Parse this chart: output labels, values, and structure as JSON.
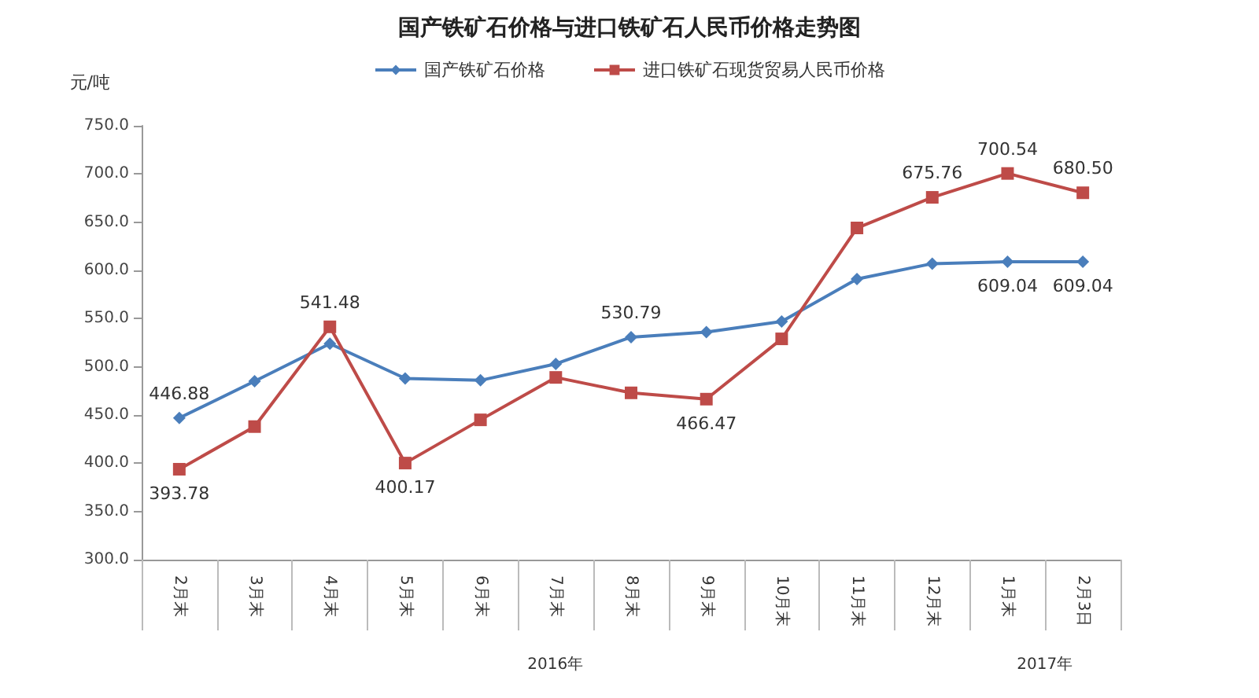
{
  "chart_data": {
    "type": "line",
    "title": "国产铁矿石价格与进口铁矿石人民币价格走势图",
    "ylabel": "元/吨",
    "categories": [
      "2月末",
      "3月末",
      "4月末",
      "5月末",
      "6月末",
      "7月末",
      "8月末",
      "9月末",
      "10月末",
      "11月末",
      "12月末",
      "1月末",
      "2月3日"
    ],
    "series": [
      {
        "name": "国产铁矿石价格",
        "color": "#4a7ebb",
        "marker": "diamond",
        "values": [
          446.88,
          485,
          524,
          488,
          486,
          503,
          530.79,
          536,
          547,
          591,
          607,
          609.04,
          609.04
        ],
        "value_labels": [
          "446.88",
          null,
          null,
          null,
          null,
          null,
          "530.79",
          null,
          null,
          null,
          null,
          "609.04",
          "609.04"
        ]
      },
      {
        "name": "进口铁矿石现货贸易人民币价格",
        "color": "#be4b48",
        "marker": "square",
        "values": [
          393.78,
          438,
          541.48,
          400.17,
          445,
          489,
          473,
          466.47,
          529,
          644,
          675.76,
          700.54,
          680.5
        ],
        "value_labels": [
          "393.78",
          null,
          "541.48",
          "400.17",
          null,
          null,
          null,
          "466.47",
          null,
          null,
          "675.76",
          "700.54",
          "680.50"
        ]
      }
    ],
    "ylim": [
      300,
      750
    ],
    "yticks": [
      "300.0",
      "350.0",
      "400.0",
      "450.0",
      "500.0",
      "550.0",
      "600.0",
      "650.0",
      "700.0",
      "750.0"
    ],
    "annotations": [
      "2016年",
      "2017年"
    ],
    "grid": false,
    "legend": "top",
    "line_style": "solid"
  }
}
